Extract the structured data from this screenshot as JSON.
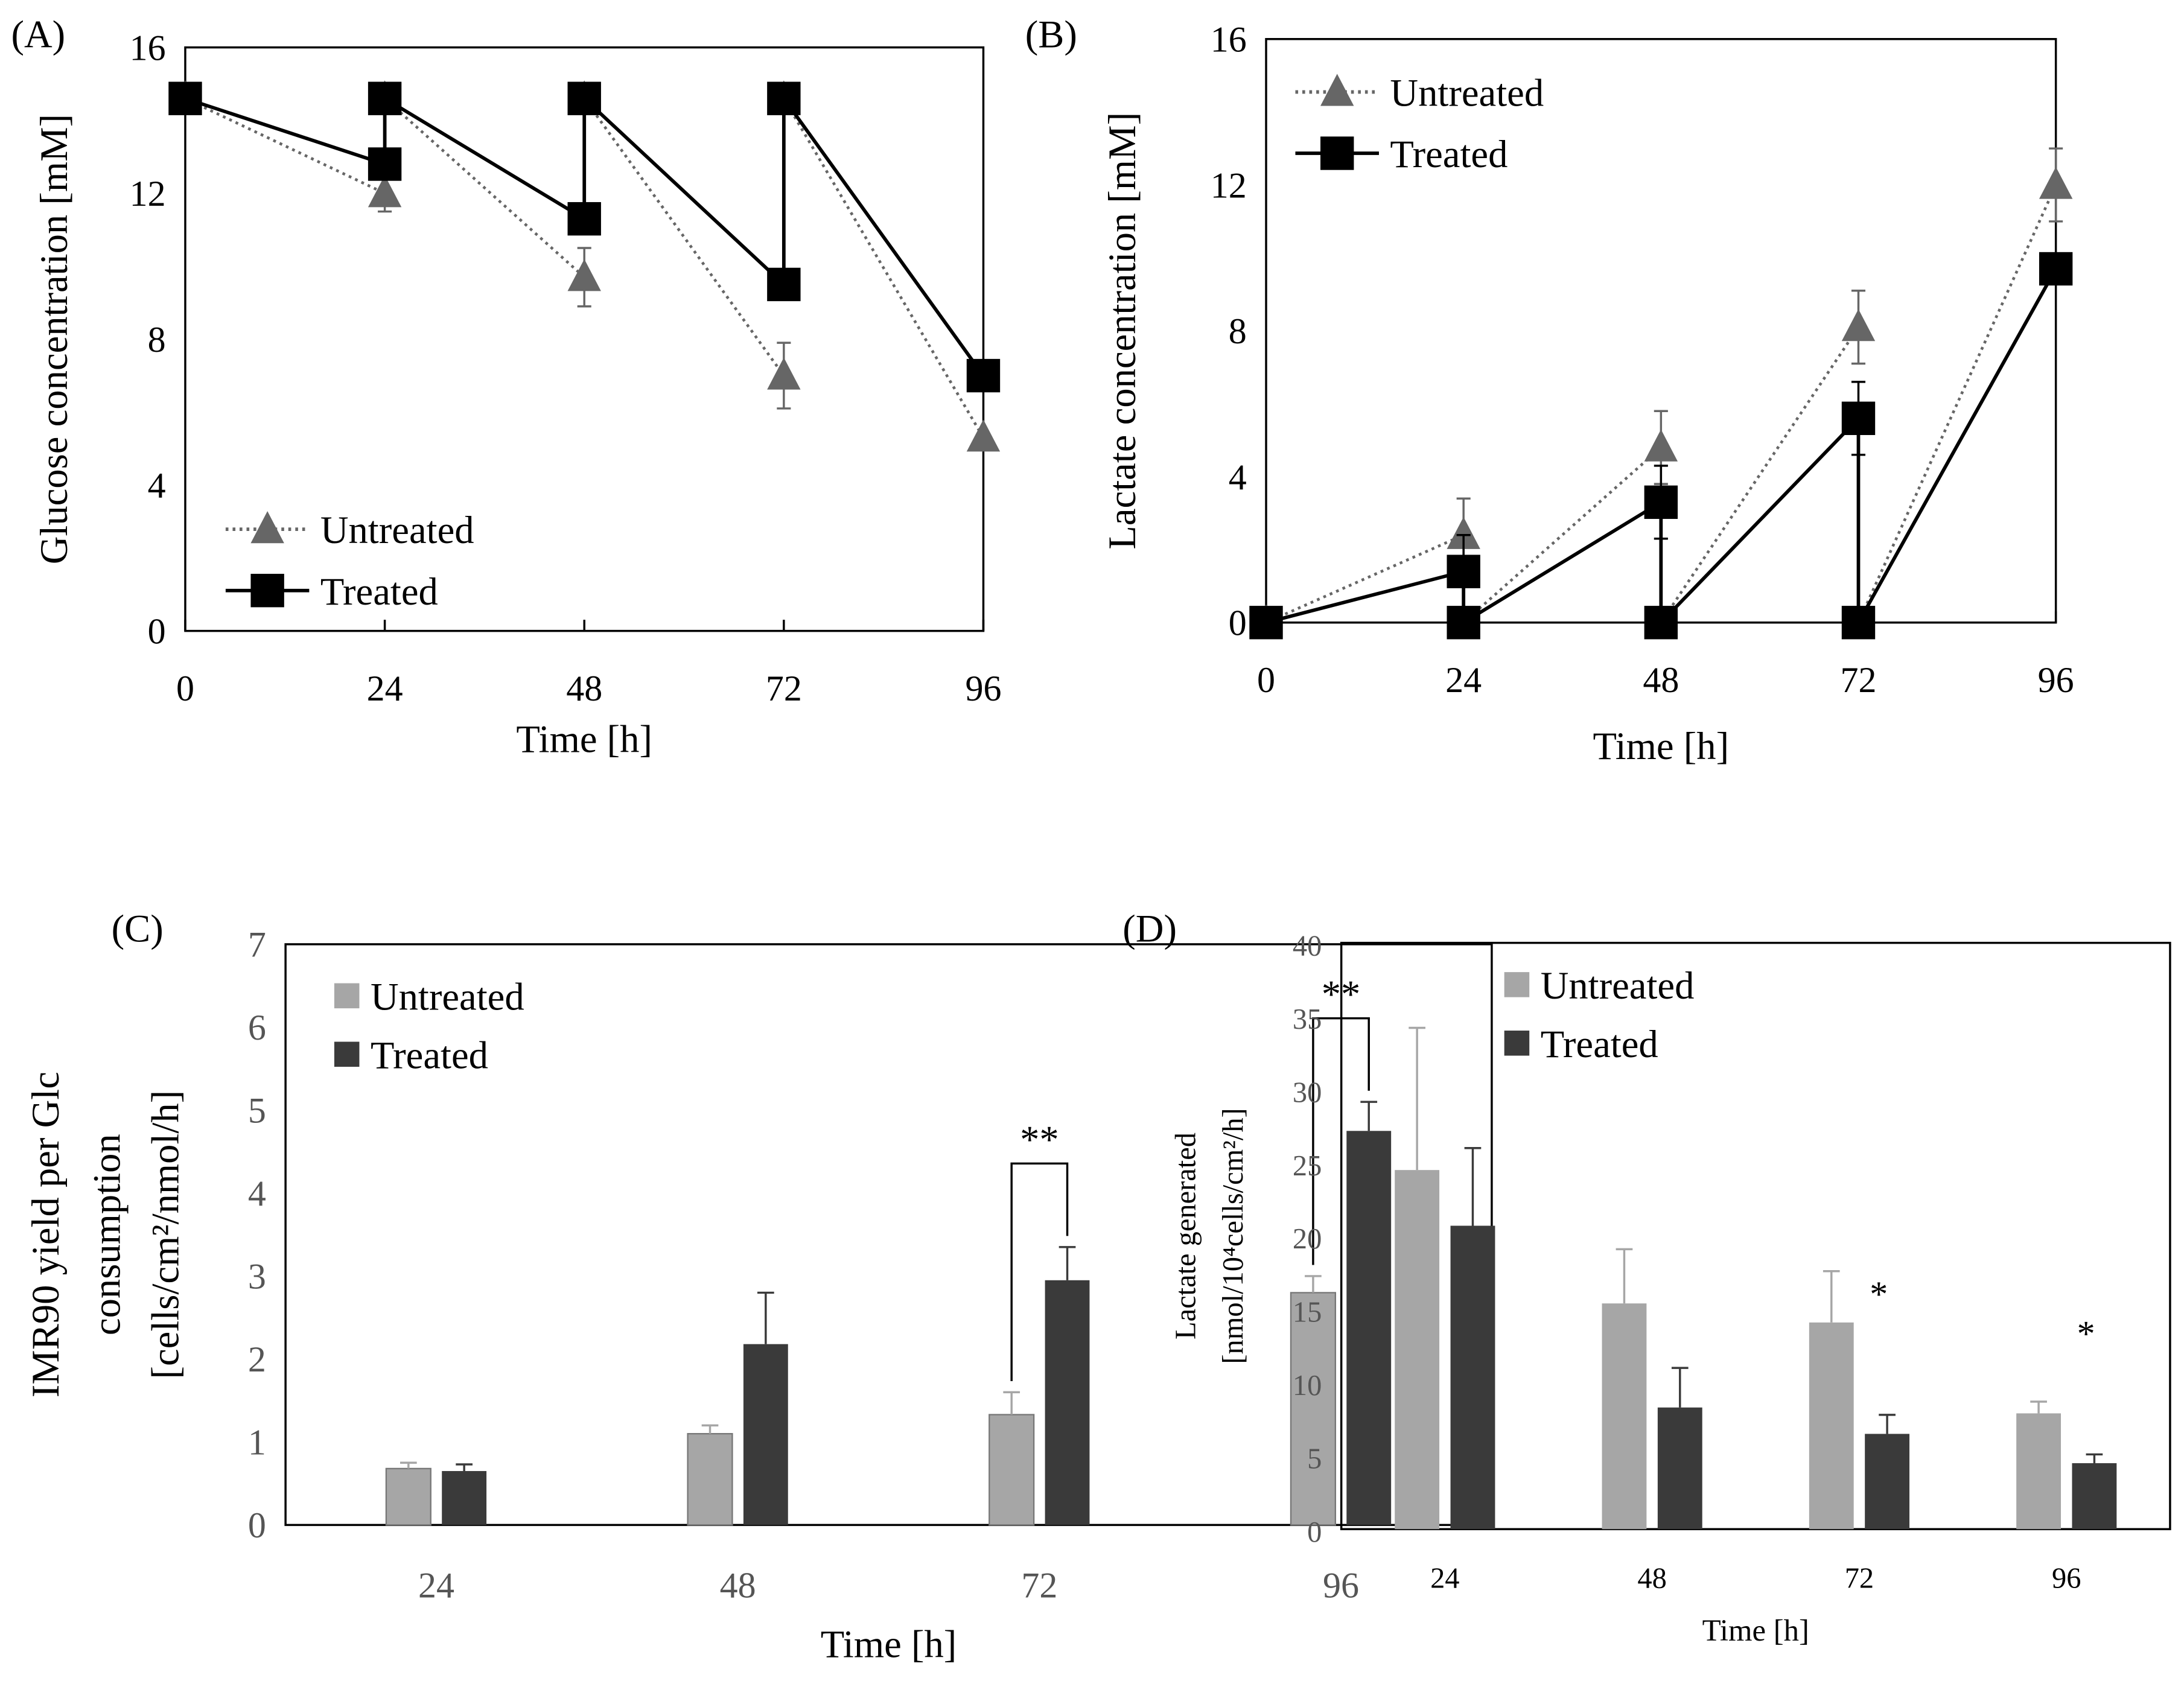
{
  "chart_data": [
    {
      "panel": "(A)",
      "type": "line",
      "ylabel": "Glucose  concentration  [mM]",
      "xlabel": "Time [h]",
      "xlim": [
        0,
        96
      ],
      "ylim": [
        0,
        16
      ],
      "xticks": [
        "0",
        "24",
        "48",
        "72",
        "96"
      ],
      "yticks": [
        "0",
        "4",
        "8",
        "12",
        "16"
      ],
      "legend_position": "bottom-left",
      "series": [
        {
          "name": "Untreated",
          "marker": "triangle",
          "style": "dotted",
          "color": "#666666",
          "segments": [
            [
              [
                0,
                14.6
              ],
              [
                24,
                12.0
              ]
            ],
            [
              [
                24,
                14.6
              ],
              [
                48,
                9.7
              ]
            ],
            [
              [
                48,
                14.6
              ],
              [
                72,
                7.0
              ]
            ],
            [
              [
                72,
                14.6
              ],
              [
                96,
                5.3
              ]
            ]
          ],
          "errors": [
            [
              24,
              12.0,
              0.5
            ],
            [
              48,
              9.7,
              0.8
            ],
            [
              72,
              7.0,
              0.9
            ]
          ]
        },
        {
          "name": "Treated",
          "marker": "square",
          "style": "solid",
          "color": "#000000",
          "segments": [
            [
              [
                0,
                14.6
              ],
              [
                24,
                12.8
              ],
              [
                24,
                14.6
              ],
              [
                48,
                11.3
              ],
              [
                48,
                14.6
              ],
              [
                72,
                9.5
              ],
              [
                72,
                14.6
              ],
              [
                96,
                7.0
              ]
            ]
          ],
          "errors": []
        }
      ]
    },
    {
      "panel": "(B)",
      "type": "line",
      "ylabel": "Lactate  concentration  [mM]",
      "xlabel": "Time [h]",
      "xlim": [
        0,
        96
      ],
      "ylim": [
        0,
        16
      ],
      "xticks": [
        "0",
        "24",
        "48",
        "72",
        "96"
      ],
      "yticks": [
        "0",
        "4",
        "8",
        "12",
        "16"
      ],
      "legend_position": "top-left",
      "series": [
        {
          "name": "Untreated",
          "marker": "triangle",
          "style": "dotted",
          "color": "#666666",
          "segments": [
            [
              [
                0,
                0
              ],
              [
                24,
                2.4
              ]
            ],
            [
              [
                24,
                0
              ],
              [
                48,
                4.8
              ]
            ],
            [
              [
                48,
                0
              ],
              [
                72,
                8.1
              ]
            ],
            [
              [
                72,
                0
              ],
              [
                96,
                12.0
              ]
            ]
          ],
          "errors": [
            [
              24,
              2.4,
              1.0
            ],
            [
              48,
              4.8,
              1.0
            ],
            [
              72,
              8.1,
              1.0
            ],
            [
              96,
              12.0,
              1.0
            ]
          ]
        },
        {
          "name": "Treated",
          "marker": "square",
          "style": "solid",
          "color": "#000000",
          "segments": [
            [
              [
                0,
                0
              ],
              [
                24,
                1.4
              ],
              [
                24,
                0
              ],
              [
                48,
                3.3
              ],
              [
                48,
                0
              ],
              [
                72,
                5.6
              ],
              [
                72,
                0
              ],
              [
                96,
                9.7
              ]
            ]
          ],
          "errors": [
            [
              24,
              1.4,
              1.0
            ],
            [
              48,
              3.3,
              1.0
            ],
            [
              72,
              5.6,
              1.0
            ]
          ]
        }
      ]
    },
    {
      "panel": "(C)",
      "type": "bar",
      "ylabel": "IMR90 yield per Glc consumption [cells/cm²/nmol/h]",
      "ylabel_lines": [
        "IMR90 yield per Glc",
        "consumption",
        "[cells/cm²/nmol/h]"
      ],
      "xlabel": "Time [h]",
      "categories": [
        "24",
        "48",
        "72",
        "96"
      ],
      "ylim": [
        0,
        7
      ],
      "yticks": [
        "0",
        "1",
        "2",
        "3",
        "4",
        "5",
        "6",
        "7"
      ],
      "legend_position": "top-left",
      "series": [
        {
          "name": "Untreated",
          "color": "#a6a6a6",
          "values": [
            0.68,
            1.1,
            1.33,
            2.8
          ],
          "errors": [
            0.07,
            0.1,
            0.27,
            0.2
          ]
        },
        {
          "name": "Treated",
          "color": "#3a3a3a",
          "values": [
            0.65,
            2.18,
            2.95,
            4.75
          ],
          "errors": [
            0.08,
            0.62,
            0.4,
            0.35
          ]
        }
      ],
      "annotations": [
        {
          "category": "72",
          "text": "**",
          "bracket": true
        },
        {
          "category": "96",
          "text": "**",
          "bracket": true
        }
      ]
    },
    {
      "panel": "(D)",
      "type": "bar",
      "ylabel": "Lactate generated [nmol/10⁴cells/cm²/h]",
      "ylabel_lines": [
        "Lactate  generated",
        "[nmol/10⁴cells/cm²/h]"
      ],
      "xlabel": "Time [h]",
      "categories": [
        "24",
        "48",
        "72",
        "96"
      ],
      "ylim": [
        0,
        40
      ],
      "yticks": [
        "0",
        "5",
        "10",
        "15",
        "20",
        "25",
        "30",
        "35",
        "40"
      ],
      "legend_position": "top-center",
      "series": [
        {
          "name": "Untreated",
          "color": "#a6a6a6",
          "values": [
            24.5,
            15.4,
            14.1,
            7.9
          ],
          "errors": [
            9.7,
            3.7,
            3.5,
            0.8
          ]
        },
        {
          "name": "Treated",
          "color": "#3a3a3a",
          "values": [
            20.7,
            8.3,
            6.5,
            4.5
          ],
          "errors": [
            5.3,
            2.7,
            1.3,
            0.6
          ]
        }
      ],
      "annotations": [
        {
          "category": "72",
          "text": "*",
          "bracket": false
        },
        {
          "category": "96",
          "text": "*",
          "bracket": false
        }
      ]
    }
  ]
}
